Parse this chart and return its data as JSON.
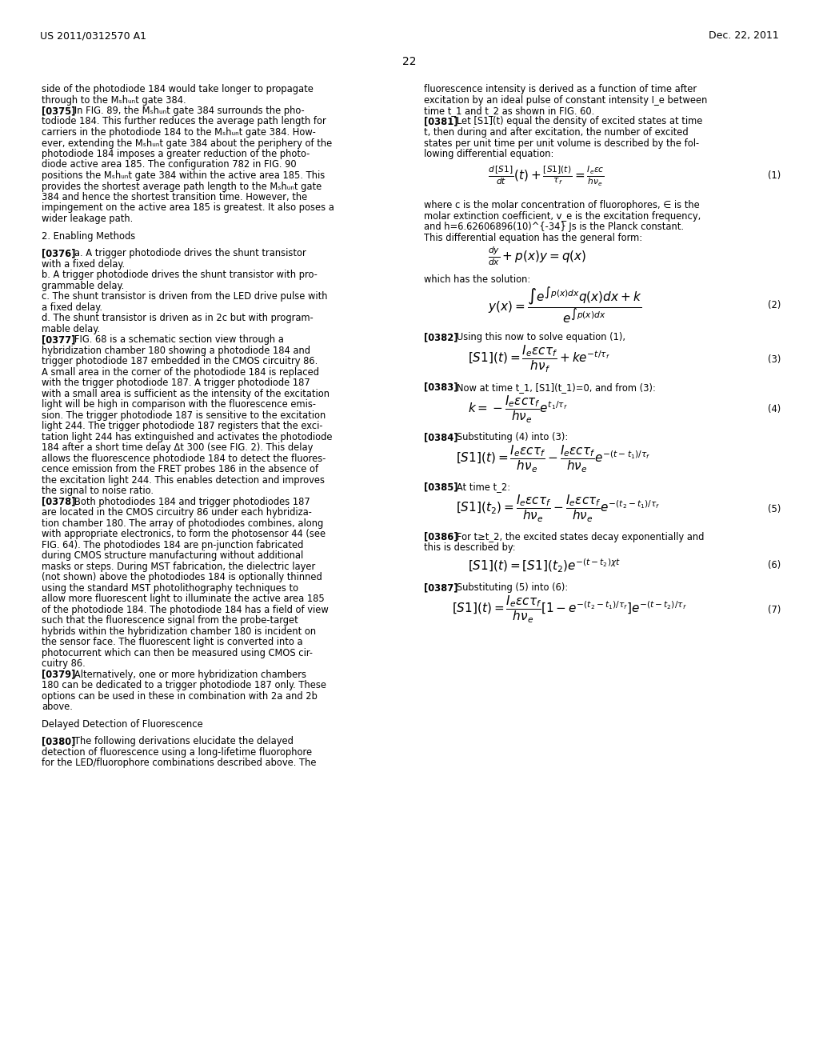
{
  "header_left": "US 2011/0312570 A1",
  "header_right": "Dec. 22, 2011",
  "page_number": "22",
  "bg_color": "#ffffff",
  "text_color": "#000000",
  "left_column": [
    "side of the photodiode ⁠⁠184 would take longer to propagate",
    "through to the M⁠⁠ₛhᵤₙ⁡t gate ⁠⁠384.",
    "[0375]   In FIG. 89, the Mₛhᵤₙ⁡t gate 384 surrounds the pho-",
    "todiode 184. This further reduces the average path length for",
    "carriers in the photodiode 184 to the Mₛhᵤₙ⁡t gate 384. How-",
    "ever, extending the Mₛhᵤₙ⁡t gate 384 about the periphery of the",
    "photodiode 184 imposes a greater reduction of the photo-",
    "diode active area 185. The configuration 782 in FIG. 90",
    "positions the Mₛhᵤₙ⁡t gate 384 within the active area 185. This",
    "provides the shortest average path length to the Mₛhᵤₙ⁡t gate",
    "384 and hence the shortest transition time. However, the",
    "impingement on the active area 185 is greatest. It also poses a",
    "wider leakage path.",
    "",
    "2. Enabling Methods",
    "",
    "[0376]   a. A trigger photodiode drives the shunt transistor",
    "with a fixed delay.",
    "b. A trigger photodiode drives the shunt transistor with pro-",
    "grammable delay.",
    "c. The shunt transistor is driven from the LED drive pulse with",
    "a fixed delay.",
    "d. The shunt transistor is driven as in 2c but with program-",
    "mable delay.",
    "[0377]   FIG. 68 is a schematic section view through a",
    "hybridization chamber 180 showing a photodiode 184 and",
    "trigger photodiode 187 embedded in the CMOS circuitry 86.",
    "A small area in the corner of the photodiode 184 is replaced",
    "with the trigger photodiode 187. A trigger photodiode 187",
    "with a small area is sufficient as the intensity of the excitation",
    "light will be high in comparison with the fluorescence emis-",
    "sion. The trigger photodiode 187 is sensitive to the excitation",
    "light 244. The trigger photodiode 187 registers that the exci-",
    "tation light 244 has extinguished and activates the photodiode",
    "184 after a short time delay Δt 300 (see FIG. 2). This delay",
    "allows the fluorescence photodiode 184 to detect the fluores-",
    "cence emission from the FRET probes 186 in the absence of",
    "the excitation light 244. This enables detection and improves",
    "the signal to noise ratio.",
    "[0378]   Both photodiodes 184 and trigger photodiodes 187",
    "are located in the CMOS circuitry 86 under each hybridiza-",
    "tion chamber 180. The array of photodiodes combines, along",
    "with appropriate electronics, to form the photosensor 44 (see",
    "FIG. 64). The photodiodes 184 are pn-junction fabricated",
    "during CMOS structure manufacturing without additional",
    "masks or steps. During MST fabrication, the dielectric layer",
    "(not shown) above the photodiodes 184 is optionally thinned",
    "using the standard MST photolithography techniques to",
    "allow more fluorescent light to illuminate the active area 185",
    "of the photodiode 184. The photodiode 184 has a field of view",
    "such that the fluorescence signal from the probe-target",
    "hybrids within the hybridization chamber 180 is incident on",
    "the sensor face. The fluorescent light is converted into a",
    "photocurrent which can then be measured using CMOS cir-",
    "cuitry 86.",
    "[0379]   Alternatively, one or more hybridization chambers",
    "180 can be dedicated to a trigger photodiode 187 only. These",
    "options can be used in these in combination with 2a and 2b",
    "above.",
    "",
    "Delayed Detection of Fluorescence",
    "",
    "[0380]   The following derivations elucidate the delayed",
    "detection of fluorescence using a long-lifetime fluorophore",
    "for the LED/fluorophore combinations described above. The"
  ],
  "right_column": [
    "fluorescence intensity is derived as a function of time after",
    "excitation by an ideal pulse of constant intensity I_e between",
    "time t_1 and t_2 as shown in FIG. 60.",
    "[0381]   Let [S1](t) equal the density of excited states at time",
    "t, then during and after excitation, the number of excited",
    "states per unit time per unit volume is described by the fol-",
    "lowing differential equation:",
    "",
    "eq1",
    "",
    "where c is the molar concentration of fluorophores, ∈ is the",
    "molar extinction coefficient, v_e is the excitation frequency,",
    "and h=6.62606896(10)^{-34} Js is the Planck constant.",
    "This differential equation has the general form:",
    "",
    "eq_dy",
    "",
    "which has the solution:",
    "",
    "eq2",
    "",
    "[0382]   Using this now to solve equation (1),",
    "",
    "eq3",
    "",
    "[0383]   Now at time t_1, [S1](t_1)=0, and from (3):",
    "",
    "eq4",
    "",
    "[0384]   Substituting (4) into (3):",
    "",
    "eq5b",
    "",
    "[0385]   At time t_2:",
    "",
    "eq5",
    "",
    "[0386]   For t≥t_2, the excited states decay exponentially and",
    "this is described by:",
    "",
    "eq6",
    "",
    "[0387]   Substituting (5) into (6):",
    "",
    "eq7"
  ]
}
